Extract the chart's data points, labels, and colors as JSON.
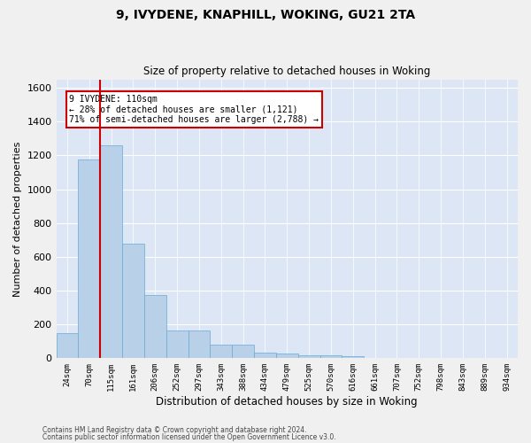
{
  "title": "9, IVYDENE, KNAPHILL, WOKING, GU21 2TA",
  "subtitle": "Size of property relative to detached houses in Woking",
  "xlabel": "Distribution of detached houses by size in Woking",
  "ylabel": "Number of detached properties",
  "bar_color": "#b8d0e8",
  "bar_edgecolor": "#6aaad4",
  "background_color": "#dce6f5",
  "grid_color": "#ffffff",
  "categories": [
    "24sqm",
    "70sqm",
    "115sqm",
    "161sqm",
    "206sqm",
    "252sqm",
    "297sqm",
    "343sqm",
    "388sqm",
    "434sqm",
    "479sqm",
    "525sqm",
    "570sqm",
    "616sqm",
    "661sqm",
    "707sqm",
    "752sqm",
    "798sqm",
    "843sqm",
    "889sqm",
    "934sqm"
  ],
  "values": [
    150,
    1175,
    1260,
    680,
    375,
    165,
    165,
    80,
    80,
    35,
    28,
    20,
    20,
    12,
    0,
    0,
    0,
    0,
    0,
    0,
    0
  ],
  "ylim": [
    0,
    1650
  ],
  "yticks": [
    0,
    200,
    400,
    600,
    800,
    1000,
    1200,
    1400,
    1600
  ],
  "vline_x_index": 1.5,
  "annotation_text": "9 IVYDENE: 110sqm\n← 28% of detached houses are smaller (1,121)\n71% of semi-detached houses are larger (2,788) →",
  "annotation_box_color": "#ffffff",
  "annotation_box_edgecolor": "#cc0000",
  "vline_color": "#cc0000",
  "footer1": "Contains HM Land Registry data © Crown copyright and database right 2024.",
  "footer2": "Contains public sector information licensed under the Open Government Licence v3.0."
}
